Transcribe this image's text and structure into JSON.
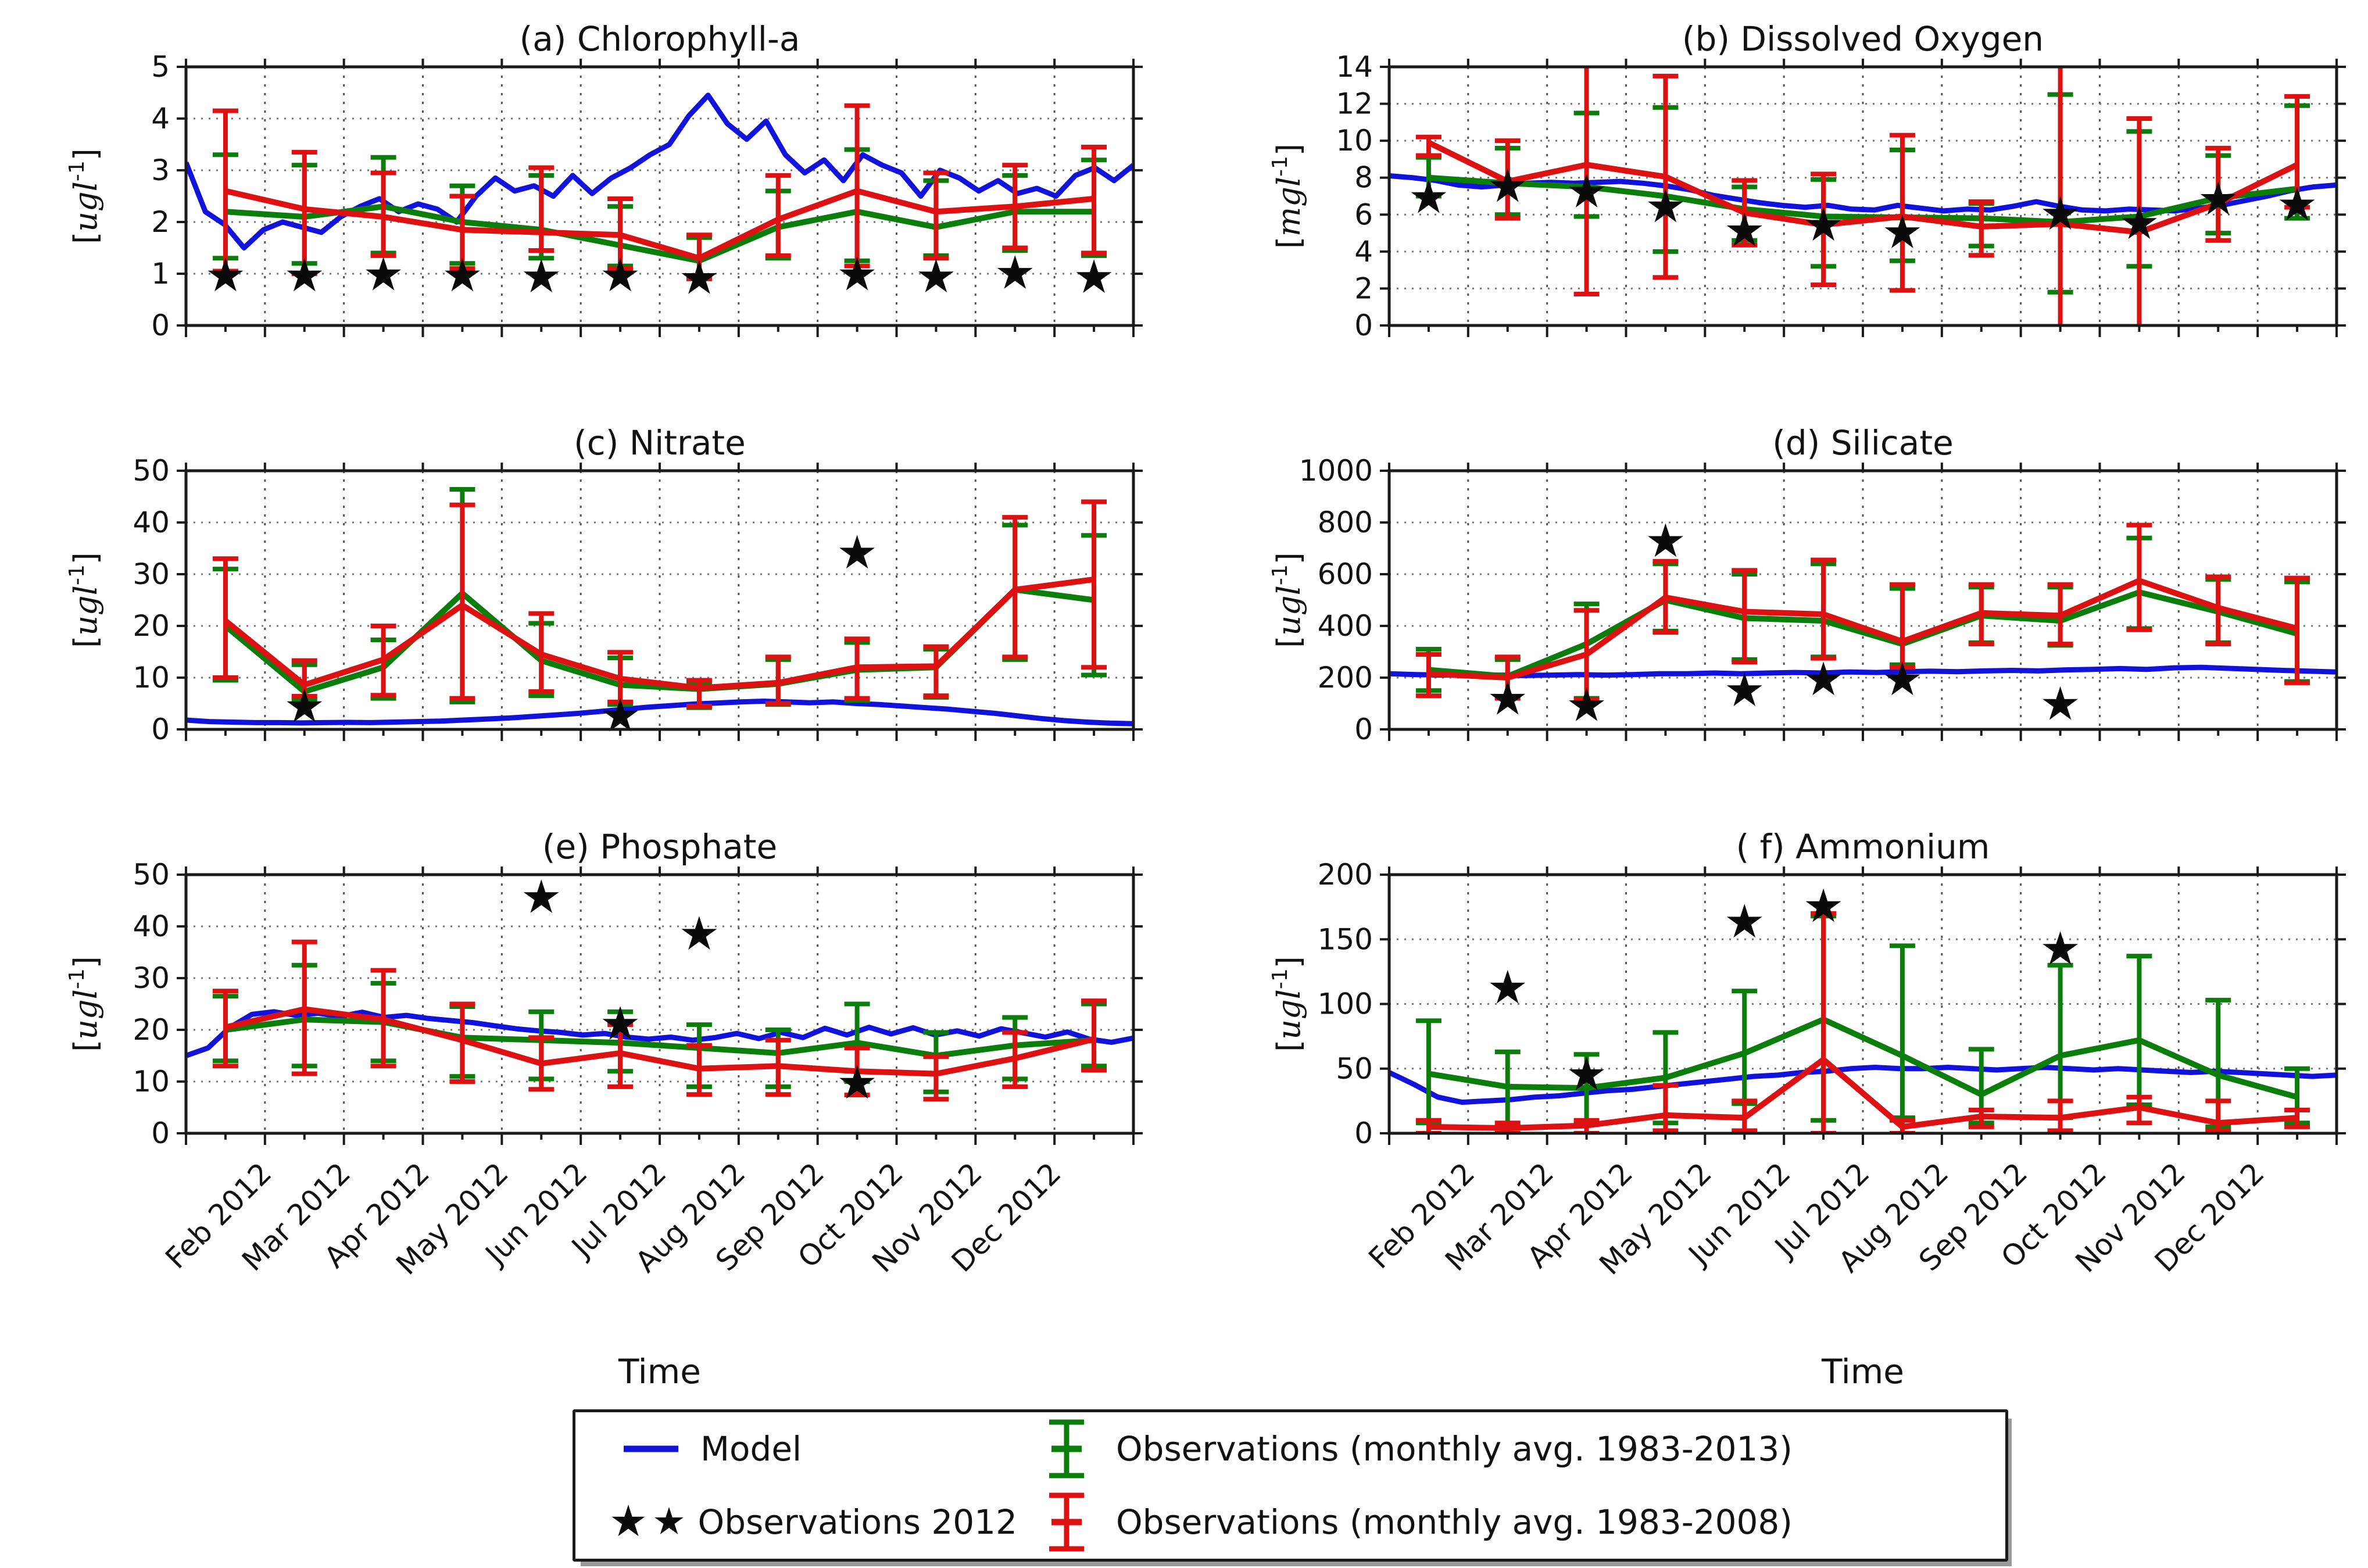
{
  "figure_title": "",
  "colors": {
    "model_blue": "#1212dd",
    "obs_green": "#0b7d0b",
    "obs_red": "#dd1111",
    "star_black": "#0a0a0a",
    "spine": "#1a1a1a",
    "grid_h": "#777777",
    "grid_v": "#555555"
  },
  "legend": {
    "model_label": "Model",
    "stars_label": "Observations 2012",
    "green_label": "Observations (monthly avg. 1983-2013)",
    "red_label": "Observations (monthly avg. 1983-2008)"
  },
  "chart_data": {
    "type": "line",
    "x_axis_label": "Time",
    "x_gridline_labels": [
      "Feb 2012",
      "Mar 2012",
      "Apr 2012",
      "May 2012",
      "Jun 2012",
      "Jul 2012",
      "Aug 2012",
      "Sep 2012",
      "Oct 2012",
      "Nov 2012",
      "Dec 2012"
    ],
    "x_range_months": [
      0,
      12
    ],
    "legend_position": "bottom-center",
    "grid": "dotted-both-axes",
    "series_names": [
      "Model",
      "Observations 2012",
      "Observations (monthly avg. 1983-2013)",
      "Observations (monthly avg. 1983-2008)"
    ],
    "panels": [
      {
        "key": "a",
        "title": "(a) Chlorophyll-a",
        "ylabel_base": "ugl",
        "ylabel_exp": "-1",
        "ylim": [
          0,
          5
        ],
        "yticks": [
          0,
          1,
          2,
          3,
          4,
          5
        ],
        "show_x_labels": false,
        "green": {
          "values": [
            2.2,
            2.1,
            2.3,
            2.0,
            1.85,
            1.55,
            1.25,
            1.9,
            2.2,
            1.9,
            2.2,
            2.2
          ],
          "lo": [
            1.3,
            1.2,
            1.4,
            1.2,
            1.3,
            1.15,
            0.95,
            1.3,
            1.25,
            1.35,
            1.45,
            1.35
          ],
          "hi": [
            3.3,
            3.1,
            3.25,
            2.7,
            2.9,
            2.3,
            1.7,
            2.6,
            3.4,
            2.8,
            2.9,
            3.2
          ]
        },
        "red": {
          "values": [
            2.6,
            2.25,
            2.1,
            1.85,
            1.8,
            1.75,
            1.3,
            2.05,
            2.6,
            2.2,
            2.3,
            2.45
          ],
          "lo": [
            1.05,
            1.0,
            1.35,
            1.1,
            1.45,
            1.1,
            0.9,
            1.35,
            1.15,
            1.3,
            1.5,
            1.4
          ],
          "hi": [
            4.15,
            3.35,
            2.95,
            2.5,
            3.05,
            2.45,
            1.75,
            2.9,
            4.25,
            2.95,
            3.1,
            3.45
          ]
        },
        "stars": [
          [
            0,
            0.95
          ],
          [
            1,
            0.95
          ],
          [
            2,
            0.97
          ],
          [
            3,
            0.95
          ],
          [
            4,
            0.93
          ],
          [
            5,
            0.95
          ],
          [
            6,
            0.9
          ],
          [
            8,
            0.97
          ],
          [
            9,
            0.93
          ],
          [
            10,
            1.0
          ],
          [
            11,
            0.92
          ]
        ],
        "blue": [
          3.15,
          2.2,
          1.95,
          1.5,
          1.85,
          2.0,
          1.9,
          1.8,
          2.1,
          2.3,
          2.45,
          2.2,
          2.35,
          2.25,
          2.0,
          2.5,
          2.85,
          2.6,
          2.7,
          2.5,
          2.9,
          2.55,
          2.85,
          3.05,
          3.3,
          3.5,
          4.05,
          4.45,
          3.9,
          3.6,
          3.95,
          3.3,
          2.95,
          3.2,
          2.8,
          3.3,
          3.1,
          2.95,
          2.5,
          3.0,
          2.85,
          2.6,
          2.8,
          2.55,
          2.65,
          2.5,
          2.9,
          3.05,
          2.8,
          3.1
        ]
      },
      {
        "key": "b",
        "title": "(b) Dissolved Oxygen",
        "ylabel_base": "mgl",
        "ylabel_exp": "-1",
        "ylim": [
          0,
          14
        ],
        "yticks": [
          0,
          2,
          4,
          6,
          8,
          10,
          12,
          14
        ],
        "show_x_labels": false,
        "green": {
          "values": [
            8.0,
            7.7,
            7.5,
            7.0,
            6.3,
            5.9,
            5.85,
            5.8,
            5.6,
            5.9,
            6.9,
            7.4
          ],
          "lo": [
            7.0,
            6.0,
            5.9,
            4.0,
            4.6,
            3.2,
            3.5,
            4.3,
            1.8,
            3.2,
            5.0,
            5.8
          ],
          "hi": [
            9.1,
            9.6,
            11.5,
            11.8,
            7.5,
            7.9,
            9.5,
            6.6,
            12.5,
            10.5,
            9.2,
            11.9
          ]
        },
        "red": {
          "values": [
            9.9,
            7.8,
            8.7,
            8.05,
            6.1,
            5.45,
            5.9,
            5.35,
            5.5,
            5.05,
            6.6,
            8.7
          ],
          "lo": [
            9.2,
            5.8,
            1.7,
            2.6,
            4.35,
            2.2,
            1.9,
            3.8,
            -0.5,
            -0.5,
            4.6,
            6.4
          ],
          "hi": [
            10.2,
            10.0,
            14.6,
            13.5,
            7.85,
            8.2,
            10.3,
            6.7,
            15.0,
            11.2,
            9.6,
            12.4
          ]
        },
        "stars": [
          [
            0,
            6.9
          ],
          [
            1,
            7.5
          ],
          [
            2,
            7.2
          ],
          [
            3,
            6.4
          ],
          [
            4,
            5.1
          ],
          [
            5,
            5.4
          ],
          [
            6,
            5.0
          ],
          [
            8,
            6.0
          ],
          [
            9,
            5.5
          ],
          [
            10,
            6.8
          ],
          [
            11,
            6.5
          ]
        ],
        "blue": [
          8.1,
          8.0,
          7.85,
          7.6,
          7.5,
          7.6,
          7.7,
          7.75,
          7.7,
          7.75,
          7.8,
          7.7,
          7.55,
          7.35,
          7.05,
          6.85,
          6.65,
          6.5,
          6.4,
          6.5,
          6.3,
          6.25,
          6.5,
          6.35,
          6.2,
          6.3,
          6.25,
          6.45,
          6.7,
          6.45,
          6.25,
          6.2,
          6.3,
          6.25,
          6.2,
          6.35,
          6.5,
          6.75,
          7.0,
          7.3,
          7.5,
          7.6
        ]
      },
      {
        "key": "c",
        "title": "(c) Nitrate",
        "ylabel_base": "ugl",
        "ylabel_exp": "-1",
        "ylim": [
          0,
          50
        ],
        "yticks": [
          0,
          10,
          20,
          30,
          40,
          50
        ],
        "show_x_labels": false,
        "green": {
          "values": [
            20,
            7.3,
            12,
            26.3,
            13.3,
            8.6,
            7.8,
            8.8,
            11.5,
            12,
            27,
            25
          ],
          "lo": [
            9.5,
            5.8,
            6.0,
            5.3,
            6.5,
            4.8,
            4.2,
            4.8,
            5.6,
            6.2,
            13.5,
            10.5
          ],
          "hi": [
            31,
            12.5,
            17.3,
            46.4,
            20.5,
            13.8,
            9.0,
            13.5,
            16.8,
            15.5,
            39.5,
            37.5
          ]
        },
        "red": {
          "values": [
            21,
            8.6,
            13.5,
            24,
            14.5,
            9.8,
            8.0,
            9.0,
            12,
            12.2,
            27,
            29
          ],
          "lo": [
            10,
            6.4,
            6.6,
            6.0,
            7.3,
            5.3,
            4.5,
            5.0,
            6.0,
            6.5,
            14,
            12
          ],
          "hi": [
            33,
            13.3,
            20,
            43.4,
            22.4,
            14.9,
            9.5,
            14,
            17.5,
            16,
            41,
            44
          ]
        },
        "stars": [
          [
            1,
            4.3
          ],
          [
            5,
            2.5
          ],
          [
            8,
            34
          ]
        ],
        "blue": [
          1.8,
          1.5,
          1.4,
          1.3,
          1.3,
          1.25,
          1.3,
          1.35,
          1.3,
          1.4,
          1.5,
          1.6,
          1.8,
          2.0,
          2.2,
          2.5,
          2.8,
          3.1,
          3.5,
          3.9,
          4.3,
          4.6,
          4.9,
          5.1,
          5.3,
          5.45,
          5.3,
          5.15,
          5.3,
          5.0,
          4.8,
          4.5,
          4.2,
          3.9,
          3.5,
          3.1,
          2.6,
          2.1,
          1.7,
          1.4,
          1.2,
          1.1
        ]
      },
      {
        "key": "d",
        "title": "(d) Silicate",
        "ylabel_base": "ugl",
        "ylabel_exp": "-1",
        "ylim": [
          0,
          1000
        ],
        "yticks": [
          0,
          200,
          400,
          600,
          800,
          1000
        ],
        "show_x_labels": false,
        "green": {
          "values": [
            230,
            205,
            330,
            500,
            430,
            420,
            330,
            440,
            420,
            530,
            455,
            370
          ],
          "lo": [
            150,
            125,
            120,
            380,
            270,
            280,
            250,
            335,
            325,
            390,
            335,
            185
          ],
          "hi": [
            310,
            270,
            485,
            640,
            600,
            640,
            545,
            550,
            550,
            740,
            580,
            570
          ]
        },
        "red": {
          "values": [
            215,
            200,
            290,
            510,
            455,
            445,
            340,
            450,
            440,
            575,
            470,
            390
          ],
          "lo": [
            130,
            120,
            115,
            375,
            260,
            275,
            240,
            330,
            330,
            385,
            330,
            180
          ],
          "hi": [
            290,
            280,
            460,
            650,
            615,
            655,
            560,
            560,
            560,
            790,
            590,
            585
          ]
        },
        "stars": [
          [
            1,
            115
          ],
          [
            2,
            90
          ],
          [
            3,
            725
          ],
          [
            4,
            148
          ],
          [
            5,
            190
          ],
          [
            6,
            190
          ],
          [
            8,
            95
          ]
        ],
        "blue": [
          215,
          212,
          210,
          212,
          210,
          208,
          210,
          212,
          210,
          212,
          215,
          215,
          218,
          215,
          218,
          220,
          218,
          222,
          220,
          223,
          225,
          223,
          226,
          228,
          226,
          230,
          232,
          235,
          232,
          238,
          240,
          236,
          232,
          228,
          225,
          222
        ]
      },
      {
        "key": "e",
        "title": "(e) Phosphate",
        "ylabel_base": "ugl",
        "ylabel_exp": "-1",
        "ylim": [
          0,
          50
        ],
        "yticks": [
          0,
          10,
          20,
          30,
          40,
          50
        ],
        "show_x_labels": true,
        "green": {
          "values": [
            20,
            22,
            21.5,
            18.5,
            18,
            17.5,
            16.5,
            15.5,
            17.5,
            15,
            17,
            18
          ],
          "lo": [
            14,
            13,
            14,
            11,
            10.5,
            12,
            9,
            9,
            10,
            8,
            10.5,
            13
          ],
          "hi": [
            26.5,
            32.5,
            29,
            24.5,
            23.5,
            23.5,
            21,
            20,
            25,
            19.5,
            22.4,
            25
          ]
        },
        "red": {
          "values": [
            20.5,
            24,
            22,
            18,
            13.5,
            15.5,
            12.5,
            13,
            12,
            11.5,
            14.5,
            18.2
          ],
          "lo": [
            13,
            11.5,
            13,
            10,
            8.5,
            9,
            7.5,
            7.5,
            7.4,
            6.6,
            9,
            12.2
          ],
          "hi": [
            27.5,
            37,
            31.5,
            25,
            18.5,
            21,
            17,
            18,
            16.5,
            14.8,
            19.5,
            25.6
          ]
        },
        "stars": [
          [
            4,
            45.5
          ],
          [
            5,
            21
          ],
          [
            6,
            38.4
          ],
          [
            8,
            9.6
          ]
        ],
        "blue": [
          15,
          16.5,
          20.5,
          23,
          23.5,
          22.8,
          23.2,
          22.6,
          23.4,
          22.4,
          22.8,
          22.2,
          21.8,
          21.4,
          20.8,
          20.2,
          19.8,
          19.5,
          19.0,
          19.3,
          18.6,
          18.2,
          18.6,
          18.0,
          18.5,
          19.3,
          18.3,
          19.5,
          18.5,
          20.3,
          19.0,
          20.5,
          19.2,
          20.4,
          19.0,
          19.8,
          18.8,
          20.2,
          19.4,
          18.6,
          19.6,
          18.2,
          17.6,
          18.4
        ]
      },
      {
        "key": "f",
        "title": "( f) Ammonium",
        "ylabel_base": "ugl",
        "ylabel_exp": "-1",
        "ylim": [
          0,
          200
        ],
        "yticks": [
          0,
          50,
          100,
          150,
          200
        ],
        "show_x_labels": true,
        "green": {
          "values": [
            46,
            36,
            35,
            43,
            62,
            88,
            60,
            30,
            60,
            72,
            45,
            28
          ],
          "lo": [
            8,
            5,
            8,
            8,
            23,
            10,
            12,
            8,
            12,
            22,
            5,
            8
          ],
          "hi": [
            87,
            63,
            61,
            78,
            110,
            168,
            145,
            65,
            130,
            137,
            103,
            50
          ]
        },
        "red": {
          "values": [
            5,
            4,
            6,
            14,
            12,
            57,
            5,
            13,
            12,
            20,
            8,
            12
          ],
          "lo": [
            0,
            0,
            0,
            2,
            2,
            0,
            0,
            5,
            2,
            8,
            2,
            5
          ],
          "hi": [
            10,
            8,
            10,
            37,
            25,
            170,
            10,
            18,
            25,
            28,
            25,
            18
          ]
        },
        "stars": [
          [
            1,
            112
          ],
          [
            2,
            45
          ],
          [
            4,
            163
          ],
          [
            5,
            175
          ],
          [
            8,
            142
          ]
        ],
        "blue": [
          47,
          38,
          28,
          24,
          25,
          26,
          28,
          29,
          31,
          33,
          34,
          36,
          38,
          40,
          42,
          44,
          45,
          47,
          48,
          50,
          51,
          50,
          50,
          51,
          50,
          49,
          50,
          51,
          50,
          49,
          50,
          49,
          48,
          47,
          48,
          47,
          46,
          45,
          44,
          45
        ]
      }
    ]
  }
}
